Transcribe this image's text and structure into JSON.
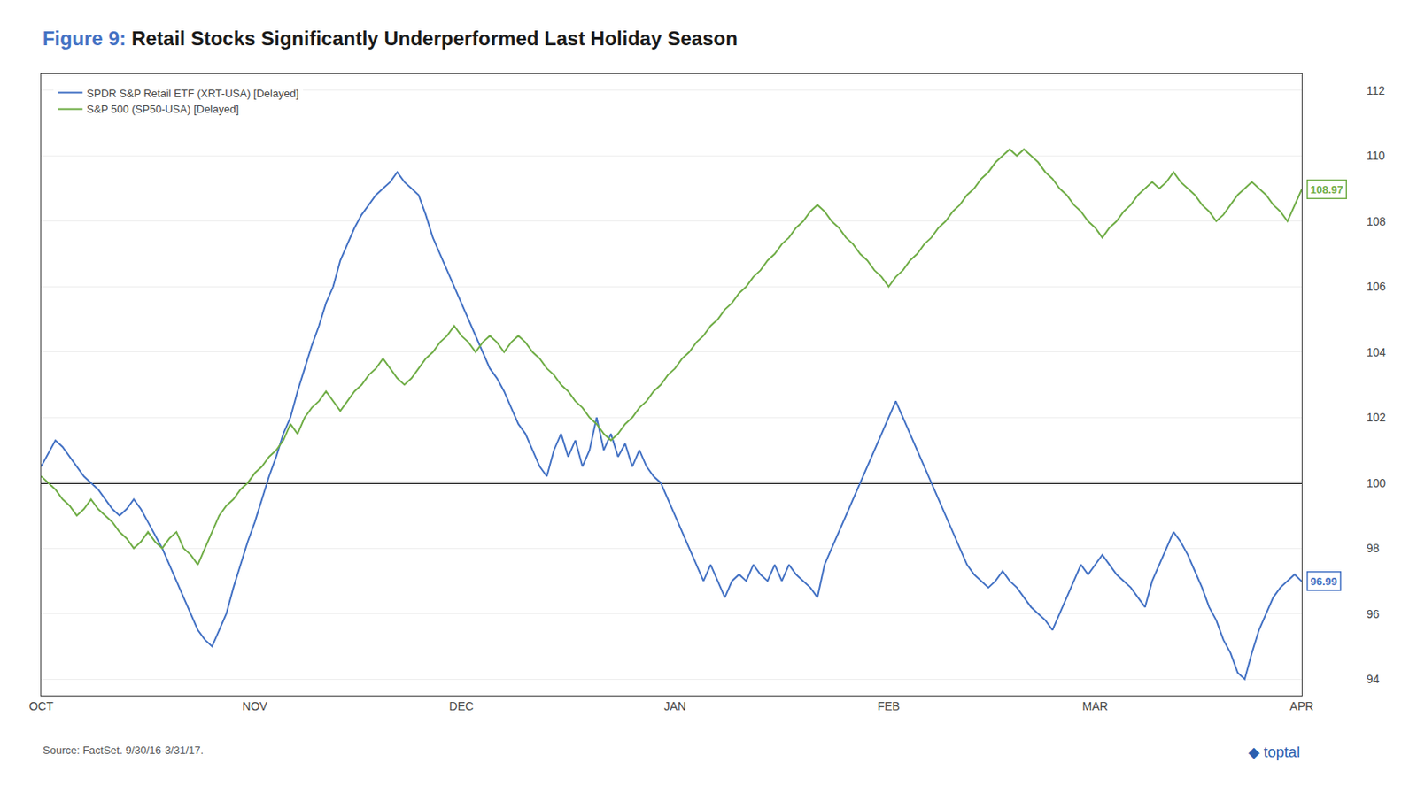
{
  "chart_data": {
    "type": "line",
    "figure_label": "Figure 9:",
    "figure_label_color": "#4472C4",
    "title": "Retail Stocks Significantly Underperformed Last Holiday Season",
    "source": "Source: FactSet. 9/30/16-3/31/17.",
    "logo": "◆ toptal",
    "logo_color": "#2B5EAE",
    "categories": [
      "OCT",
      null,
      null,
      null,
      null,
      null,
      null,
      null,
      null,
      null,
      null,
      null,
      null,
      null,
      null,
      null,
      null,
      null,
      null,
      null,
      null,
      null,
      null,
      null,
      null,
      null,
      null,
      null,
      null,
      null,
      "NOV",
      null,
      null,
      null,
      null,
      null,
      null,
      null,
      null,
      null,
      null,
      null,
      null,
      null,
      null,
      null,
      null,
      null,
      null,
      null,
      null,
      null,
      null,
      null,
      null,
      null,
      null,
      null,
      null,
      "DEC",
      null,
      null,
      null,
      null,
      null,
      null,
      null,
      null,
      null,
      null,
      null,
      null,
      null,
      null,
      null,
      null,
      null,
      null,
      null,
      null,
      null,
      null,
      null,
      null,
      null,
      null,
      null,
      null,
      null,
      "JAN",
      null,
      null,
      null,
      null,
      null,
      null,
      null,
      null,
      null,
      null,
      null,
      null,
      null,
      null,
      null,
      null,
      null,
      null,
      null,
      null,
      null,
      null,
      null,
      null,
      null,
      null,
      null,
      null,
      null,
      "FEB",
      null,
      null,
      null,
      null,
      null,
      null,
      null,
      null,
      null,
      null,
      null,
      null,
      null,
      null,
      null,
      null,
      null,
      null,
      null,
      null,
      null,
      null,
      null,
      null,
      null,
      null,
      null,
      null,
      "MAR",
      null,
      null,
      null,
      null,
      null,
      null,
      null,
      null,
      null,
      null,
      null,
      null,
      null,
      null,
      null,
      null,
      null,
      null,
      null,
      null,
      null,
      null,
      null,
      null,
      null,
      null,
      null,
      null,
      "APR"
    ],
    "series": [
      {
        "name": "SPDR S&P Retail ETF (XRT-USA) [Delayed]",
        "color": "#4472C4",
        "end_label": "96.99",
        "values": [
          100.5,
          100.9,
          101.3,
          101.1,
          100.8,
          100.5,
          100.2,
          100.0,
          99.8,
          99.5,
          99.2,
          99.0,
          99.2,
          99.5,
          99.2,
          98.8,
          98.4,
          98.0,
          97.5,
          97.0,
          96.5,
          96.0,
          95.5,
          95.2,
          95.0,
          95.5,
          96.0,
          96.8,
          97.5,
          98.2,
          98.8,
          99.5,
          100.2,
          100.8,
          101.5,
          102.0,
          102.8,
          103.5,
          104.2,
          104.8,
          105.5,
          106.0,
          106.8,
          107.3,
          107.8,
          108.2,
          108.5,
          108.8,
          109.0,
          109.2,
          109.5,
          109.2,
          109.0,
          108.8,
          108.2,
          107.5,
          107.0,
          106.5,
          106.0,
          105.5,
          105.0,
          104.5,
          104.0,
          103.5,
          103.2,
          102.8,
          102.3,
          101.8,
          101.5,
          101.0,
          100.5,
          100.2,
          101.0,
          101.5,
          100.8,
          101.3,
          100.5,
          101.0,
          102.0,
          101.0,
          101.5,
          100.8,
          101.2,
          100.5,
          101.0,
          100.5,
          100.2,
          100.0,
          99.5,
          99.0,
          98.5,
          98.0,
          97.5,
          97.0,
          97.5,
          97.0,
          96.5,
          97.0,
          97.2,
          97.0,
          97.5,
          97.2,
          97.0,
          97.5,
          97.0,
          97.5,
          97.2,
          97.0,
          96.8,
          96.5,
          97.5,
          98.0,
          98.5,
          99.0,
          99.5,
          100.0,
          100.5,
          101.0,
          101.5,
          102.0,
          102.5,
          102.0,
          101.5,
          101.0,
          100.5,
          100.0,
          99.5,
          99.0,
          98.5,
          98.0,
          97.5,
          97.2,
          97.0,
          96.8,
          97.0,
          97.3,
          97.0,
          96.8,
          96.5,
          96.2,
          96.0,
          95.8,
          95.5,
          96.0,
          96.5,
          97.0,
          97.5,
          97.2,
          97.5,
          97.8,
          97.5,
          97.2,
          97.0,
          96.8,
          96.5,
          96.2,
          97.0,
          97.5,
          98.0,
          98.5,
          98.2,
          97.8,
          97.3,
          96.8,
          96.2,
          95.8,
          95.2,
          94.8,
          94.2,
          94.0,
          94.8,
          95.5,
          96.0,
          96.5,
          96.8,
          97.0,
          97.2,
          96.99
        ]
      },
      {
        "name": "S&P 500 (SP50-USA) [Delayed]",
        "color": "#70AD47",
        "end_label": "108.97",
        "values": [
          100.2,
          100.0,
          99.8,
          99.5,
          99.3,
          99.0,
          99.2,
          99.5,
          99.2,
          99.0,
          98.8,
          98.5,
          98.3,
          98.0,
          98.2,
          98.5,
          98.2,
          98.0,
          98.3,
          98.5,
          98.0,
          97.8,
          97.5,
          98.0,
          98.5,
          99.0,
          99.3,
          99.5,
          99.8,
          100.0,
          100.3,
          100.5,
          100.8,
          101.0,
          101.3,
          101.8,
          101.5,
          102.0,
          102.3,
          102.5,
          102.8,
          102.5,
          102.2,
          102.5,
          102.8,
          103.0,
          103.3,
          103.5,
          103.8,
          103.5,
          103.2,
          103.0,
          103.2,
          103.5,
          103.8,
          104.0,
          104.3,
          104.5,
          104.8,
          104.5,
          104.3,
          104.0,
          104.3,
          104.5,
          104.3,
          104.0,
          104.3,
          104.5,
          104.3,
          104.0,
          103.8,
          103.5,
          103.3,
          103.0,
          102.8,
          102.5,
          102.3,
          102.0,
          101.8,
          101.5,
          101.3,
          101.5,
          101.8,
          102.0,
          102.3,
          102.5,
          102.8,
          103.0,
          103.3,
          103.5,
          103.8,
          104.0,
          104.3,
          104.5,
          104.8,
          105.0,
          105.3,
          105.5,
          105.8,
          106.0,
          106.3,
          106.5,
          106.8,
          107.0,
          107.3,
          107.5,
          107.8,
          108.0,
          108.3,
          108.5,
          108.3,
          108.0,
          107.8,
          107.5,
          107.3,
          107.0,
          106.8,
          106.5,
          106.3,
          106.0,
          106.3,
          106.5,
          106.8,
          107.0,
          107.3,
          107.5,
          107.8,
          108.0,
          108.3,
          108.5,
          108.8,
          109.0,
          109.3,
          109.5,
          109.8,
          110.0,
          110.2,
          110.0,
          110.2,
          110.0,
          109.8,
          109.5,
          109.3,
          109.0,
          108.8,
          108.5,
          108.3,
          108.0,
          107.8,
          107.5,
          107.8,
          108.0,
          108.3,
          108.5,
          108.8,
          109.0,
          109.2,
          109.0,
          109.2,
          109.5,
          109.2,
          109.0,
          108.8,
          108.5,
          108.3,
          108.0,
          108.2,
          108.5,
          108.8,
          109.0,
          109.2,
          109.0,
          108.8,
          108.5,
          108.3,
          108.0,
          108.5,
          108.97
        ]
      }
    ],
    "reference_line": {
      "value": 100,
      "color": "#000000"
    },
    "ylim": [
      93.5,
      112.5
    ],
    "yticks": [
      94,
      96,
      98,
      100,
      102,
      104,
      106,
      108,
      110,
      112
    ],
    "grid": "y",
    "legend": "upper left"
  }
}
